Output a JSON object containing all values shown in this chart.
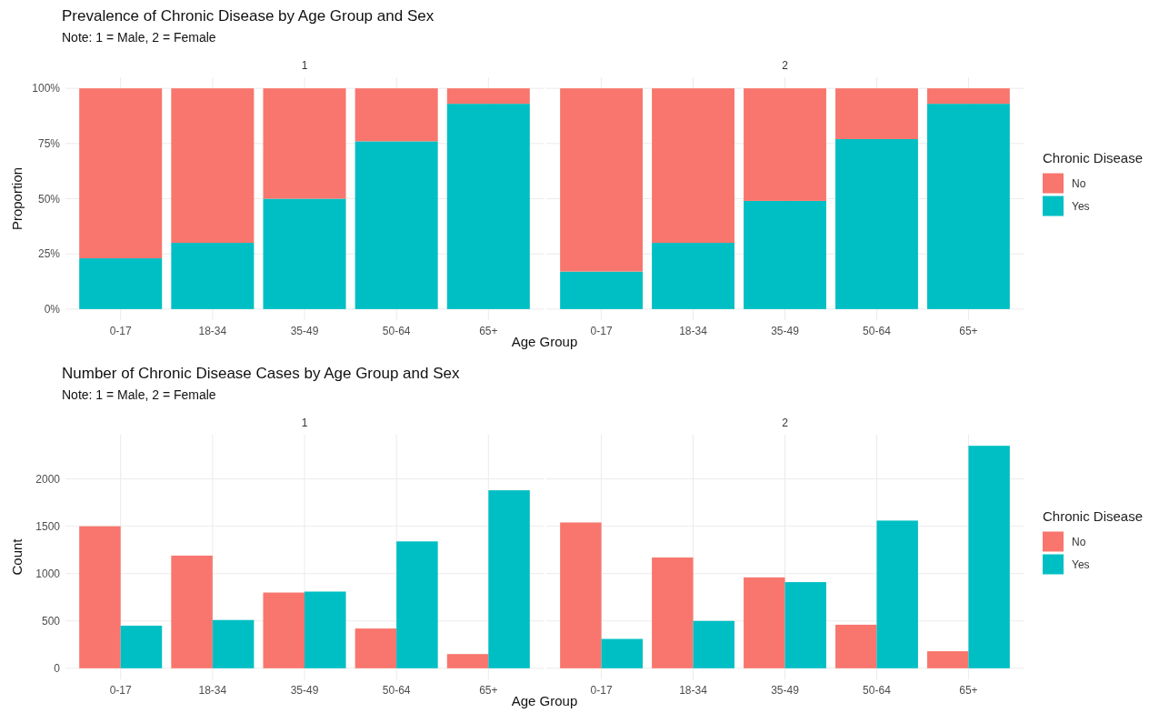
{
  "chart_data": [
    {
      "type": "bar",
      "stacked": true,
      "title": "Prevalence of Chronic Disease by Age Group and Sex",
      "subtitle": "Note: 1 = Male, 2 = Female",
      "annotations": [
        "1"
      ],
      "xlabel": "Age Group",
      "ylabel": "Proportion",
      "categories": [
        "0-17",
        "18-34",
        "35-49",
        "50-64",
        "65+"
      ],
      "series": [
        {
          "color": "#00bfc4",
          "values": [
            0.23,
            0.3,
            0.5,
            0.76,
            0.93
          ]
        },
        {
          "color": "#f8766d",
          "values": [
            0.77,
            0.7,
            0.5,
            0.24,
            0.07
          ]
        }
      ],
      "ylim": [
        -0.05,
        1.05
      ],
      "yticks": [
        {
          "value": 0,
          "label": "0%"
        },
        {
          "value": 0.25,
          "label": "25%"
        },
        {
          "value": 0.5,
          "label": "50%"
        },
        {
          "value": 0.75,
          "label": "75%"
        },
        {
          "value": 1,
          "label": "100%"
        }
      ],
      "grid": true,
      "legend": false
    },
    {
      "type": "bar",
      "stacked": true,
      "annotations": [
        "2"
      ],
      "legend_title": "Chronic Disease",
      "categories": [
        "0-17",
        "18-34",
        "35-49",
        "50-64",
        "65+"
      ],
      "series": [
        {
          "name": "Yes",
          "color": "#00bfc4",
          "values": [
            0.17,
            0.3,
            0.49,
            0.77,
            0.93
          ]
        },
        {
          "name": "No",
          "color": "#f8766d",
          "values": [
            0.83,
            0.7,
            0.51,
            0.23,
            0.07
          ]
        }
      ],
      "ylim": [
        -0.05,
        1.05
      ],
      "yticks": [
        0,
        0.25,
        0.5,
        0.75,
        1
      ],
      "grid": true,
      "legend": "right",
      "tick_labels": "x"
    },
    {
      "type": "bar",
      "title": "Number of Chronic Disease Cases by Age Group and Sex",
      "subtitle": "Note: 1 = Male, 2 = Female",
      "annotations": [
        "1"
      ],
      "xlabel": "Age Group",
      "ylabel": "Count",
      "categories": [
        "0-17",
        "18-34",
        "35-49",
        "50-64",
        "65+"
      ],
      "series": [
        {
          "color": "#f8766d",
          "values": [
            1500,
            1190,
            800,
            420,
            150
          ]
        },
        {
          "color": "#00bfc4",
          "values": [
            450,
            510,
            810,
            1340,
            1880
          ]
        }
      ],
      "ylim": [
        -117,
        2467
      ],
      "yticks": [
        0,
        500,
        1000,
        1500,
        2000
      ],
      "grid": true,
      "legend": false
    },
    {
      "type": "bar",
      "annotations": [
        "2"
      ],
      "legend_title": "Chronic Disease",
      "categories": [
        "0-17",
        "18-34",
        "35-49",
        "50-64",
        "65+"
      ],
      "series": [
        {
          "name": "No",
          "color": "#f8766d",
          "values": [
            1540,
            1170,
            960,
            460,
            180
          ]
        },
        {
          "name": "Yes",
          "color": "#00bfc4",
          "values": [
            310,
            500,
            910,
            1560,
            2350
          ]
        }
      ],
      "ylim": [
        -117,
        2467
      ],
      "yticks": [
        0,
        500,
        1000,
        1500,
        2000
      ],
      "grid": true,
      "legend": "right",
      "tick_labels": "x"
    }
  ]
}
